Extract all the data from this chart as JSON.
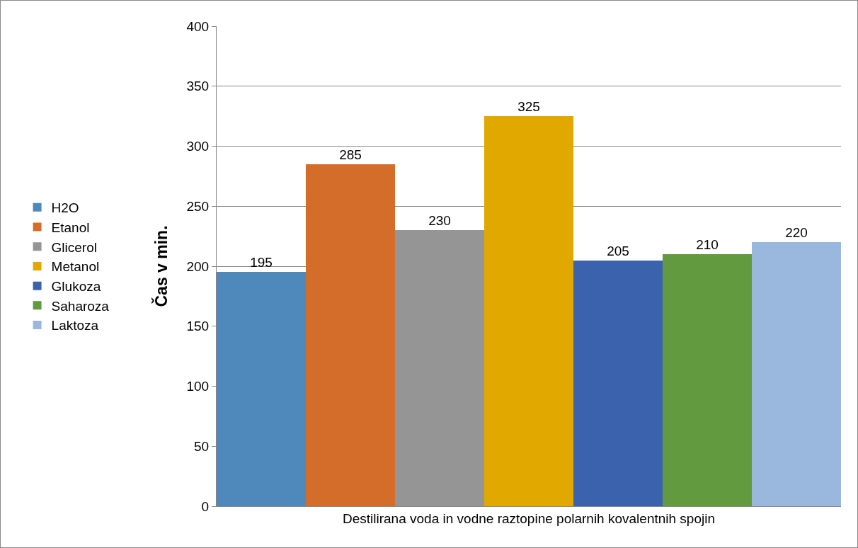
{
  "chart_data": {
    "type": "bar",
    "categories": [
      "Destilirana voda in vodne raztopine polarnih kovalentnih spojin"
    ],
    "ylabel": "Čas v min.",
    "ylim": [
      0,
      400
    ],
    "yticks": [
      0,
      50,
      100,
      150,
      200,
      250,
      300,
      350,
      400
    ],
    "grid": "y",
    "legend": "left",
    "data_labels": true,
    "series": [
      {
        "name": "H2O",
        "color": "#4f88bb",
        "values": [
          195
        ]
      },
      {
        "name": "Etanol",
        "color": "#d46d2a",
        "values": [
          285
        ]
      },
      {
        "name": "Glicerol",
        "color": "#959595",
        "values": [
          230
        ]
      },
      {
        "name": "Metanol",
        "color": "#e1a800",
        "values": [
          325
        ]
      },
      {
        "name": "Glukoza",
        "color": "#3b63ad",
        "values": [
          205
        ]
      },
      {
        "name": "Saharoza",
        "color": "#629b3f",
        "values": [
          210
        ]
      },
      {
        "name": "Laktoza",
        "color": "#9ab8de",
        "values": [
          220
        ]
      }
    ]
  }
}
